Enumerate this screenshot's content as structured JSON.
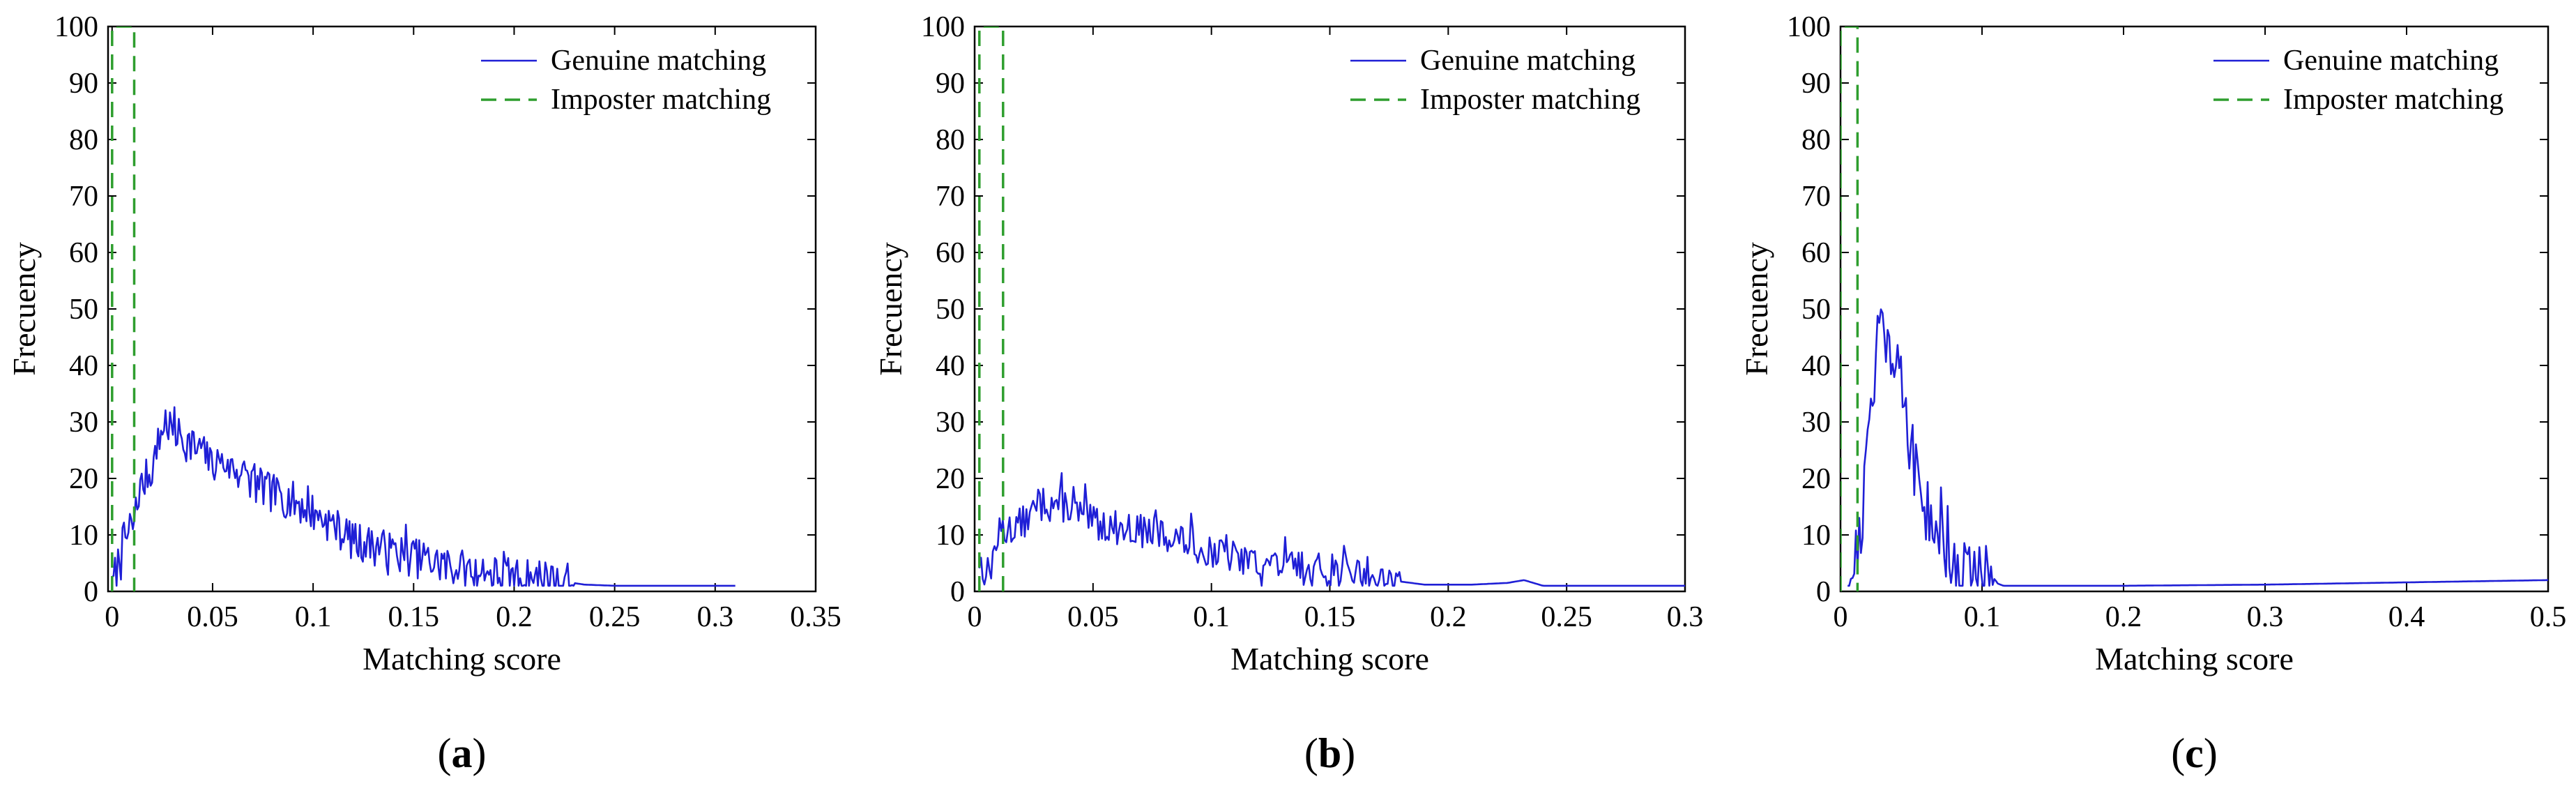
{
  "colors": {
    "genuine": "#1f1fd6",
    "imposter": "#2e9e2e",
    "axis": "#000000",
    "background": "#ffffff"
  },
  "panel_labels": [
    {
      "open": "(",
      "letter": "a",
      "close": ")"
    },
    {
      "open": "(",
      "letter": "b",
      "close": ")"
    },
    {
      "open": "(",
      "letter": "c",
      "close": ")"
    }
  ],
  "chart_data": [
    {
      "type": "line",
      "panel": "a",
      "title": "",
      "xlabel": "Matching score",
      "ylabel": "Frecuency",
      "xlim": [
        -0.002,
        0.35
      ],
      "ylim": [
        0,
        100
      ],
      "xticks": [
        0,
        0.05,
        0.1,
        0.15,
        0.2,
        0.25,
        0.3,
        0.35
      ],
      "xtick_labels": [
        "0",
        "0.05",
        "0.1",
        "0.15",
        "0.2",
        "0.25",
        "0.3",
        "0.35"
      ],
      "yticks": [
        0,
        10,
        20,
        30,
        40,
        50,
        60,
        70,
        80,
        90,
        100
      ],
      "ytick_labels": [
        "0",
        "10",
        "20",
        "30",
        "40",
        "50",
        "60",
        "70",
        "80",
        "90",
        "100"
      ],
      "legend_position": "top-right",
      "series": [
        {
          "name": "Genuine matching",
          "style": "solid",
          "peaks": [
            [
              0.0,
              1
            ],
            [
              0.003,
              5
            ],
            [
              0.006,
              9
            ],
            [
              0.01,
              11
            ],
            [
              0.014,
              18
            ],
            [
              0.02,
              22
            ],
            [
              0.026,
              30
            ],
            [
              0.035,
              27
            ],
            [
              0.05,
              23
            ],
            [
              0.06,
              22
            ],
            [
              0.075,
              18
            ],
            [
              0.09,
              16
            ],
            [
              0.105,
              13
            ],
            [
              0.12,
              9
            ],
            [
              0.14,
              7
            ],
            [
              0.16,
              5
            ],
            [
              0.18,
              3.5
            ],
            [
              0.2,
              2.5
            ],
            [
              0.22,
              2
            ],
            [
              0.235,
              1.2
            ],
            [
              0.25,
              1
            ],
            [
              0.3,
              1
            ],
            [
              0.31,
              1
            ]
          ],
          "noise": 3.5,
          "spike_every": 6,
          "spike_extra": 3,
          "noise_until": 0.23,
          "seed": 7
        },
        {
          "name": "Imposter matching",
          "style": "dashed",
          "x": [
            0.0,
            0.0,
            0.011,
            0.011
          ],
          "y": [
            0,
            100,
            100,
            0
          ]
        }
      ]
    },
    {
      "type": "line",
      "panel": "b",
      "title": "",
      "xlabel": "Matching score",
      "ylabel": "Frecuency",
      "xlim": [
        0,
        0.3
      ],
      "ylim": [
        0,
        100
      ],
      "xticks": [
        0,
        0.05,
        0.1,
        0.15,
        0.2,
        0.25,
        0.3
      ],
      "xtick_labels": [
        "0",
        "0.05",
        "0.1",
        "0.15",
        "0.2",
        "0.25",
        "0.3"
      ],
      "yticks": [
        0,
        10,
        20,
        30,
        40,
        50,
        60,
        70,
        80,
        90,
        100
      ],
      "ytick_labels": [
        "0",
        "10",
        "20",
        "30",
        "40",
        "50",
        "60",
        "70",
        "80",
        "90",
        "100"
      ],
      "legend_position": "top-right",
      "series": [
        {
          "name": "Genuine matching",
          "style": "solid",
          "peaks": [
            [
              0.002,
              5
            ],
            [
              0.006,
              3
            ],
            [
              0.01,
              10
            ],
            [
              0.02,
              12
            ],
            [
              0.03,
              16
            ],
            [
              0.04,
              15
            ],
            [
              0.05,
              12
            ],
            [
              0.065,
              11
            ],
            [
              0.08,
              10
            ],
            [
              0.1,
              7
            ],
            [
              0.12,
              5
            ],
            [
              0.14,
              4
            ],
            [
              0.16,
              3.5
            ],
            [
              0.175,
              2
            ],
            [
              0.19,
              1.2
            ],
            [
              0.21,
              1.2
            ],
            [
              0.225,
              1.5
            ],
            [
              0.232,
              2
            ],
            [
              0.24,
              1
            ],
            [
              0.3,
              1
            ]
          ],
          "noise": 3,
          "spike_every": 7,
          "spike_extra": 3,
          "noise_until": 0.18,
          "seed": 13
        },
        {
          "name": "Imposter matching",
          "style": "dashed",
          "x": [
            0.002,
            0.002,
            0.012,
            0.012
          ],
          "y": [
            0,
            100,
            100,
            0
          ]
        }
      ]
    },
    {
      "type": "line",
      "panel": "c",
      "title": "",
      "xlabel": "Matching score",
      "ylabel": "Frecuency",
      "xlim": [
        0,
        0.5
      ],
      "ylim": [
        0,
        100
      ],
      "xticks": [
        0,
        0.1,
        0.2,
        0.3,
        0.4,
        0.5
      ],
      "xtick_labels": [
        "0",
        "0.1",
        "0.2",
        "0.3",
        "0.4",
        "0.5"
      ],
      "yticks": [
        0,
        10,
        20,
        30,
        40,
        50,
        60,
        70,
        80,
        90,
        100
      ],
      "ytick_labels": [
        "0",
        "10",
        "20",
        "30",
        "40",
        "50",
        "60",
        "70",
        "80",
        "90",
        "100"
      ],
      "legend_position": "top-right",
      "series": [
        {
          "name": "Genuine matching",
          "style": "solid",
          "peaks": [
            [
              0.005,
              1
            ],
            [
              0.01,
              5
            ],
            [
              0.015,
              12
            ],
            [
              0.02,
              28
            ],
            [
              0.027,
              48
            ],
            [
              0.033,
              45
            ],
            [
              0.04,
              40
            ],
            [
              0.047,
              30
            ],
            [
              0.055,
              18
            ],
            [
              0.065,
              12
            ],
            [
              0.075,
              8
            ],
            [
              0.085,
              4
            ],
            [
              0.095,
              2.5
            ],
            [
              0.105,
              2
            ],
            [
              0.115,
              1
            ],
            [
              0.2,
              1
            ],
            [
              0.3,
              1.2
            ],
            [
              0.4,
              1.6
            ],
            [
              0.5,
              2
            ]
          ],
          "noise": 6,
          "spike_every": 4,
          "spike_extra": 5,
          "noise_until": 0.11,
          "seed": 21
        },
        {
          "name": "Imposter matching",
          "style": "dashed",
          "x": [
            0.0,
            0.0,
            0.012,
            0.012
          ],
          "y": [
            0,
            100,
            100,
            0
          ]
        }
      ]
    }
  ]
}
